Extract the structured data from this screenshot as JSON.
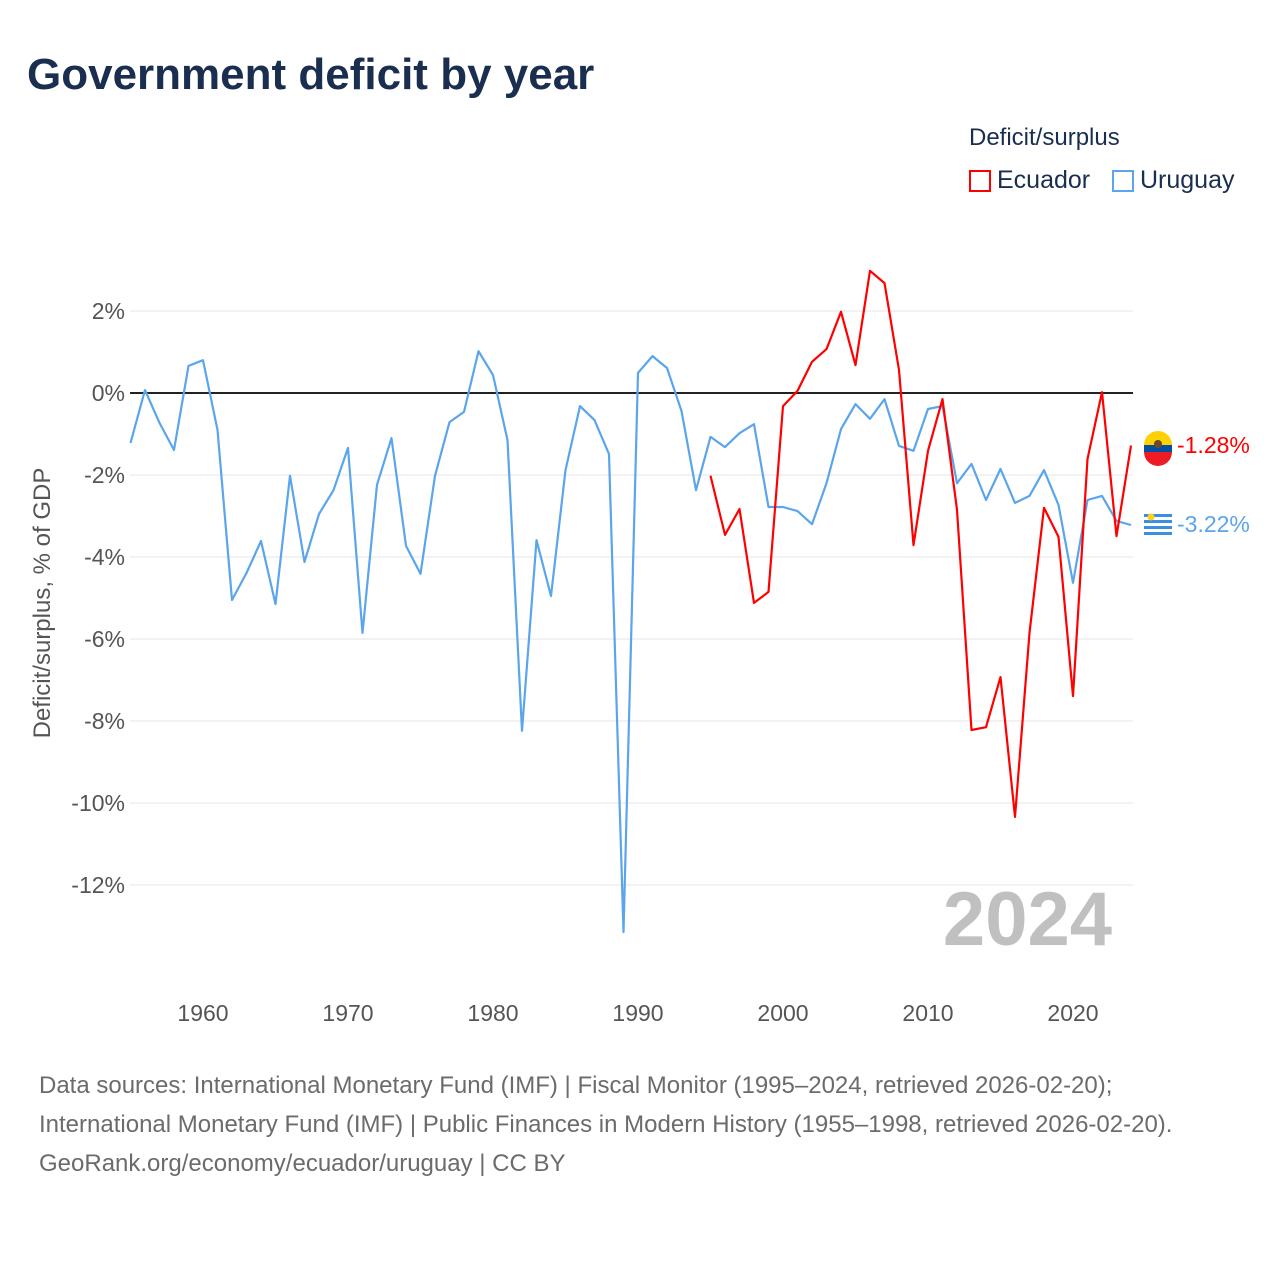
{
  "title": "Government deficit by year",
  "legend": {
    "title": "Deficit/surplus",
    "items": [
      {
        "name": "Ecuador",
        "color": "#ff0000"
      },
      {
        "name": "Uruguay",
        "color": "#5aa5eb"
      }
    ]
  },
  "footer": {
    "sources": "Data sources: International Monetary Fund (IMF) | Fiscal Monitor (1995–2024, retrieved 2026-02-20); International Monetary Fund (IMF) | Public Finances in Modern History (1955–1998, retrieved 2026-02-20).",
    "credit": "GeoRank.org/economy/ecuador/uruguay | CC BY"
  },
  "chart_data": {
    "type": "line",
    "title": "Government deficit by year",
    "xlabel": "",
    "ylabel": "Deficit/surplus, % of GDP",
    "xlim": [
      1955,
      2024
    ],
    "ylim": [
      -13.5,
      3.3
    ],
    "x_ticks": [
      1960,
      1970,
      1980,
      1990,
      2000,
      2010,
      2020
    ],
    "y_ticks": [
      2,
      0,
      -2,
      -4,
      -6,
      -8,
      -10,
      -12
    ],
    "y_tick_labels": [
      "2%",
      "0%",
      "-2%",
      "-4%",
      "-6%",
      "-8%",
      "-10%",
      "-12%"
    ],
    "grid": true,
    "legend_position": "top-right",
    "year_annotation": "2024",
    "series": [
      {
        "name": "Ecuador",
        "color": "#ff0000",
        "end_label": "-1.28%",
        "start_year": 1995,
        "values": [
          -2.02,
          -3.46,
          -2.83,
          -5.12,
          -4.85,
          -0.32,
          0.05,
          0.76,
          1.07,
          1.98,
          0.68,
          2.98,
          2.68,
          0.56,
          -3.71,
          -1.41,
          -0.15,
          -2.85,
          -8.22,
          -8.15,
          -6.93,
          -10.34,
          -5.85,
          -2.8,
          -3.51,
          -7.39,
          -1.61,
          0.02,
          -3.49,
          -1.28
        ]
      },
      {
        "name": "Uruguay",
        "color": "#5aa5eb",
        "end_label": "-3.22%",
        "start_year": 1955,
        "values": [
          -1.22,
          0.07,
          -0.73,
          -1.39,
          0.66,
          0.8,
          -0.9,
          -5.05,
          -4.39,
          -3.61,
          -5.15,
          -2.02,
          -4.12,
          -2.95,
          -2.37,
          -1.34,
          -5.85,
          -2.24,
          -1.1,
          -3.73,
          -4.41,
          -2.02,
          -0.71,
          -0.46,
          1.02,
          0.44,
          -1.15,
          -8.24,
          -3.59,
          -4.95,
          -1.88,
          -0.32,
          -0.66,
          -1.49,
          -13.15,
          0.49,
          0.9,
          0.61,
          -0.44,
          -2.37,
          -1.07,
          -1.32,
          -0.98,
          -0.76,
          -2.78,
          -2.78,
          -2.88,
          -3.2,
          -2.2,
          -0.88,
          -0.27,
          -0.63,
          -0.15,
          -1.29,
          -1.41,
          -0.39,
          -0.32,
          -2.2,
          -1.73,
          -2.61,
          -1.85,
          -2.68,
          -2.51,
          -1.88,
          -2.73,
          -4.63,
          -2.61,
          -2.51,
          -3.12,
          -3.22
        ]
      }
    ]
  }
}
